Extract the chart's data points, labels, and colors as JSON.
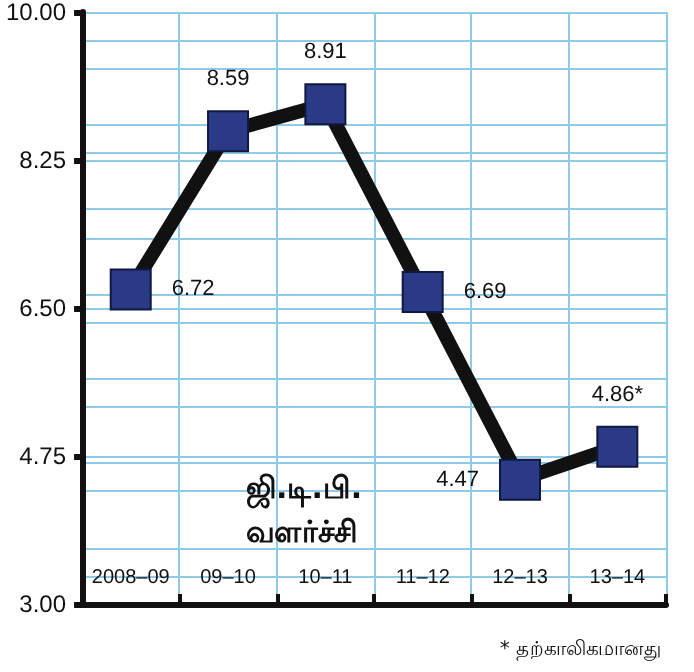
{
  "chart_data": {
    "type": "line",
    "title": "ஜி.டி.பி.\nவளர்ச்சி",
    "categories": [
      "2008–09",
      "09–10",
      "10–11",
      "11–12",
      "12–13",
      "13–14"
    ],
    "series": [
      {
        "color": "#2b3a86",
        "values": [
          6.72,
          8.59,
          8.91,
          6.69,
          4.47,
          4.86
        ],
        "value_labels": [
          "6.72",
          "8.59",
          "8.91",
          "6.69",
          "4.47",
          "4.86*"
        ]
      }
    ],
    "ylim": [
      3,
      10
    ],
    "yticks": [
      {
        "value": 3,
        "label": "3.00"
      },
      {
        "value": 4.75,
        "label": "4.75"
      },
      {
        "value": 6.5,
        "label": "6.50"
      },
      {
        "value": 8.25,
        "label": "8.25"
      },
      {
        "value": 10,
        "label": "10.00"
      }
    ],
    "grid": true,
    "marker": "square",
    "line_style": "solid",
    "annotations": [
      "* தற்காலிகமானது"
    ]
  }
}
